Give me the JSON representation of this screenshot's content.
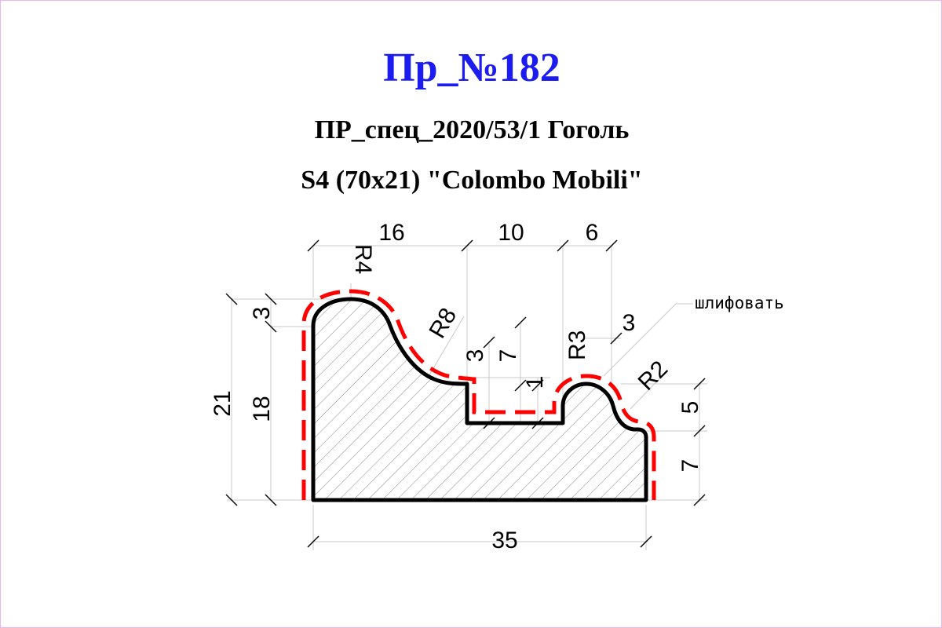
{
  "header": {
    "title": "Пр_№182",
    "subtitle_1": "ПР_спец_2020/53/1 Гоголь",
    "subtitle_2": "S4 (70x21) \"Colombo Mobili\""
  },
  "dimensions": {
    "top_16": "16",
    "top_10": "10",
    "top_6": "6",
    "radius_r4": "R4",
    "radius_r8": "R8",
    "radius_r3": "R3",
    "radius_r2": "R2",
    "left_21": "21",
    "left_18": "18",
    "left_3": "3",
    "inner_3": "3",
    "inner_7": "7",
    "inner_1": "1",
    "right_3": "3",
    "right_5": "5",
    "right_7": "7",
    "bottom_35": "35"
  },
  "annotations": {
    "sand_note": "шлифовать"
  },
  "colors": {
    "title": "#1c1cf0",
    "outline": "#000000",
    "dashed_offset": "#ff0000",
    "hatch": "#808080"
  }
}
